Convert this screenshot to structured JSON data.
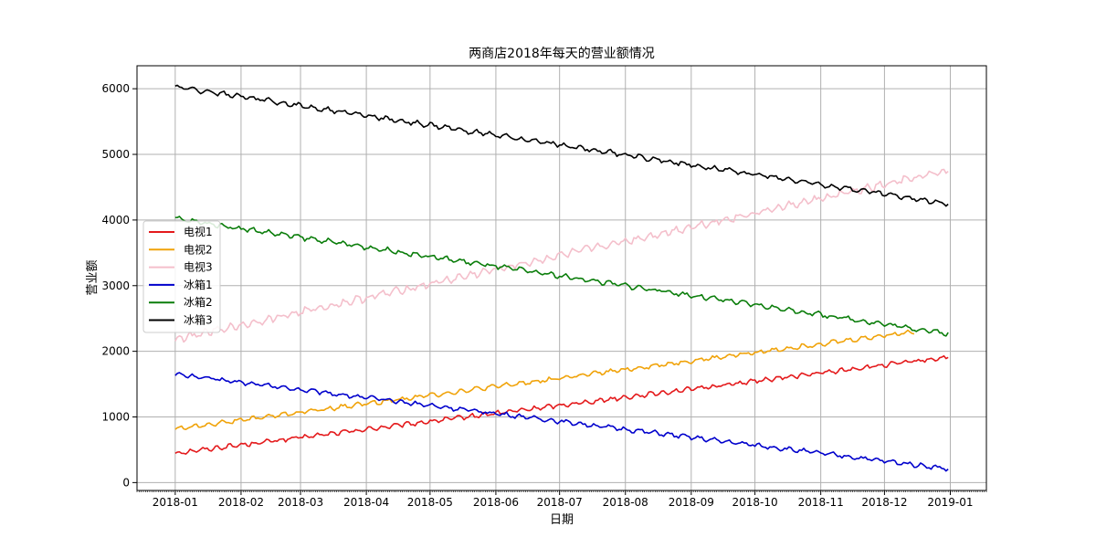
{
  "chart_data": {
    "type": "line",
    "title": "两商店2018年每天的营业额情况",
    "xlabel": "日期",
    "ylabel": "营业额",
    "xlim": [
      "2017-12-14",
      "2019-01-18"
    ],
    "ylim": [
      -120,
      6350
    ],
    "x_ticks": [
      "2018-01",
      "2018-02",
      "2018-03",
      "2018-04",
      "2018-05",
      "2018-06",
      "2018-07",
      "2018-08",
      "2018-09",
      "2018-10",
      "2018-11",
      "2018-12",
      "2019-01"
    ],
    "y_ticks": [
      0,
      1000,
      2000,
      3000,
      4000,
      5000,
      6000
    ],
    "grid": true,
    "legend_position": "center-left",
    "series": [
      {
        "name": "电视1",
        "color": "#e41a1c",
        "start": 450,
        "end": 1910,
        "noise": 40,
        "period": 6,
        "end_date": "2018-12-31"
      },
      {
        "name": "电视2",
        "color": "#f0a30a",
        "start": 820,
        "end": 2300,
        "noise": 40,
        "period": 7,
        "end_date": "2018-12-15"
      },
      {
        "name": "电视3",
        "color": "#f4bfcb",
        "start": 2180,
        "end": 4750,
        "noise": 70,
        "period": 6,
        "end_date": "2018-12-31"
      },
      {
        "name": "冰箱1",
        "color": "#0000cc",
        "start": 1650,
        "end": 210,
        "noise": 40,
        "period": 7,
        "end_date": "2018-12-31"
      },
      {
        "name": "冰箱2",
        "color": "#0a7d0a",
        "start": 4020,
        "end": 2270,
        "noise": 45,
        "period": 7,
        "end_date": "2018-12-31"
      },
      {
        "name": "冰箱3",
        "color": "#000000",
        "start": 6030,
        "end": 4250,
        "noise": 45,
        "period": 7,
        "end_date": "2018-12-31"
      }
    ]
  }
}
